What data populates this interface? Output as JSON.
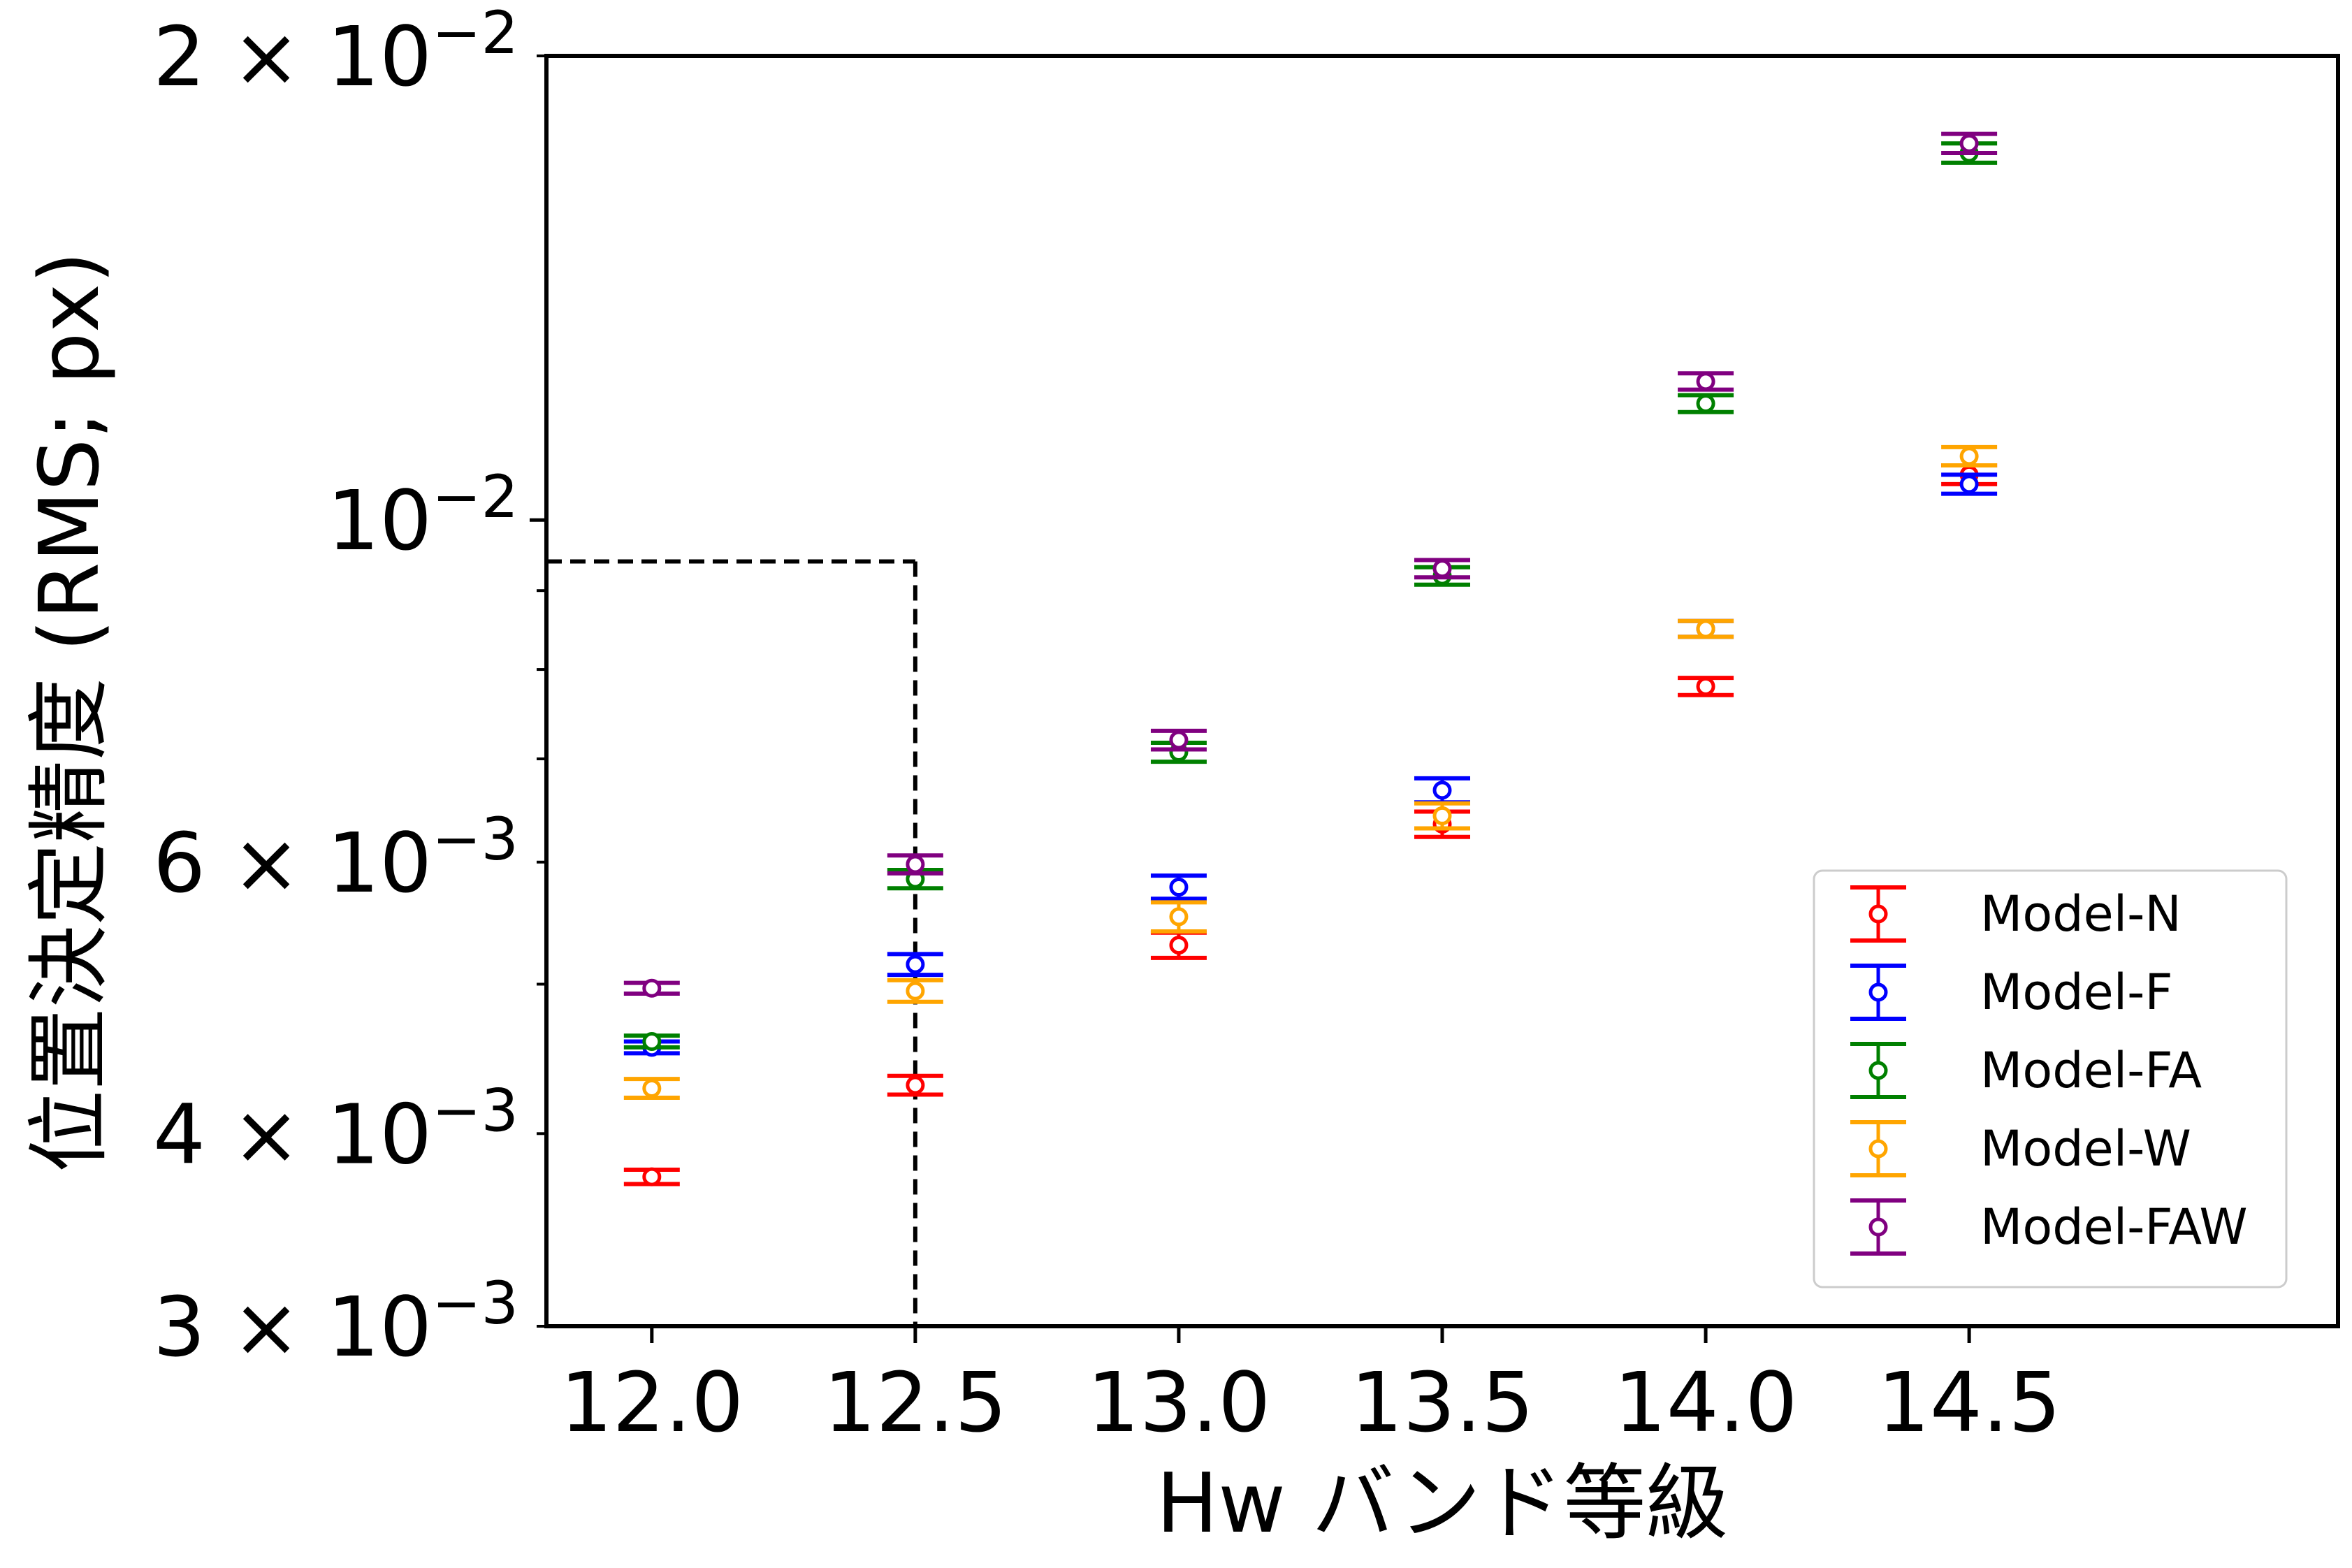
{
  "chart_data": {
    "type": "scatter",
    "xlabel": "Hw バンド等級",
    "ylabel": "位置決定精度 (RMS; px)",
    "xlim": [
      11.8,
      15.2
    ],
    "ylim": [
      0.003,
      0.02
    ],
    "yscale": "log",
    "x_ticks": [
      {
        "value": 12.0,
        "label": "12.0"
      },
      {
        "value": 12.5,
        "label": "12.5"
      },
      {
        "value": 13.0,
        "label": "13.0"
      },
      {
        "value": 13.5,
        "label": "13.5"
      },
      {
        "value": 14.0,
        "label": "14.0"
      },
      {
        "value": 14.5,
        "label": "14.5"
      }
    ],
    "y_major_ticks": [
      {
        "value": 0.01,
        "mantissa": "",
        "exp": "−2",
        "label": "10−2"
      }
    ],
    "y_minor_ticks": [
      {
        "value": 0.003,
        "mantissa": "3 × 10",
        "exp": "−3",
        "label": "3 × 10−3"
      },
      {
        "value": 0.004,
        "mantissa": "4 × 10",
        "exp": "−3",
        "label": "4 × 10−3"
      },
      {
        "value": 0.006,
        "mantissa": "6 × 10",
        "exp": "−3",
        "label": "6 × 10−3"
      },
      {
        "value": 0.02,
        "mantissa": "2 × 10",
        "exp": "−2",
        "label": "2 × 10−2"
      }
    ],
    "y_unlabeled_minor_ticks": [
      0.005,
      0.007,
      0.008,
      0.009
    ],
    "x": [
      12.0,
      12.5,
      13.0,
      13.5,
      14.0,
      14.5
    ],
    "series": [
      {
        "name": "Model-N",
        "color": "#ff0000",
        "values": [
          0.00375,
          0.0043,
          0.0053,
          0.00635,
          0.0078,
          0.0107
        ],
        "errors": [
          4e-05,
          6e-05,
          0.0001,
          0.00012,
          0.0001,
          0.00015
        ]
      },
      {
        "name": "Model-F",
        "color": "#0000ff",
        "values": [
          0.00455,
          0.00515,
          0.00578,
          0.00668,
          0.0085,
          0.01055
        ],
        "errors": [
          4e-05,
          8e-05,
          0.0001,
          0.00012,
          0.0001,
          0.00015
        ]
      },
      {
        "name": "Model-FA",
        "color": "#008000",
        "values": [
          0.00459,
          0.00585,
          0.00707,
          0.0092,
          0.0119,
          0.0173
        ],
        "errors": [
          4e-05,
          8e-05,
          0.0001,
          0.00012,
          0.00015,
          0.00025
        ]
      },
      {
        "name": "Model-W",
        "color": "#ffa500",
        "values": [
          0.00428,
          0.00495,
          0.00553,
          0.00643,
          0.0085,
          0.011
        ],
        "errors": [
          6e-05,
          8e-05,
          0.00012,
          0.00012,
          0.0001,
          0.00015
        ]
      },
      {
        "name": "Model-FAW",
        "color": "#800080",
        "values": [
          0.00497,
          0.00598,
          0.0072,
          0.0093,
          0.0123,
          0.01755
        ],
        "errors": [
          4e-05,
          8e-05,
          0.0001,
          0.00012,
          0.00015,
          0.00025
        ]
      }
    ],
    "reference_lines": {
      "style": "dashed",
      "color": "#000000",
      "x_value": 12.5,
      "y_value": 0.0094
    },
    "legend": {
      "position": "lower-right"
    },
    "grid": false
  }
}
